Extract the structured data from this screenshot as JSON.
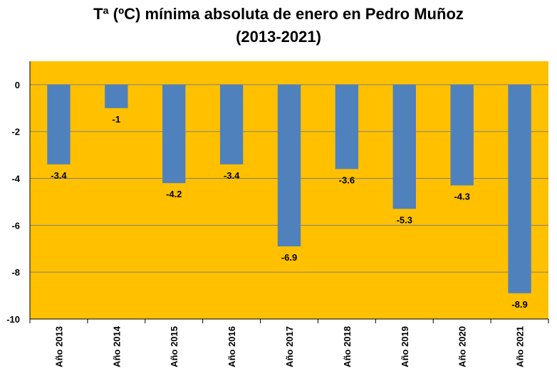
{
  "chart_data": {
    "type": "bar",
    "title_line1": "Tª (ºC) mínima absoluta de enero en Pedro Muñoz",
    "title_line2": "(2013-2021)",
    "categories": [
      "Año 2013",
      "Año 2014",
      "Año 2015",
      "Año 2016",
      "Año 2017",
      "Año 2018",
      "Año 2019",
      "Año 2020",
      "Año 2021"
    ],
    "values": [
      -3.4,
      -1,
      -4.2,
      -3.4,
      -6.9,
      -3.6,
      -5.3,
      -4.3,
      -8.9
    ],
    "data_labels": [
      "-3.4",
      "-1",
      "-4.2",
      "-3.4",
      "-6.9",
      "-3.6",
      "-5.3",
      "-4.3",
      "-8.9"
    ],
    "ylim": [
      -10,
      1
    ],
    "yticks": [
      0,
      -2,
      -4,
      -6,
      -8,
      -10
    ],
    "grid": true,
    "colors": {
      "plot_background": "#FFC000",
      "bar": "#4F81BD",
      "gridline": "#7F7F7F"
    }
  }
}
